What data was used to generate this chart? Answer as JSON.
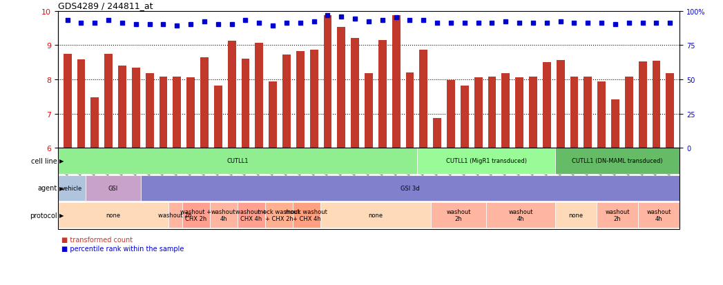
{
  "title": "GDS4289 / 244811_at",
  "samples": [
    "GSM731500",
    "GSM731501",
    "GSM731502",
    "GSM731503",
    "GSM731504",
    "GSM731505",
    "GSM731518",
    "GSM731519",
    "GSM731520",
    "GSM731506",
    "GSM731507",
    "GSM731508",
    "GSM731509",
    "GSM731510",
    "GSM731511",
    "GSM731512",
    "GSM731513",
    "GSM731514",
    "GSM731515",
    "GSM731516",
    "GSM731517",
    "GSM731521",
    "GSM731522",
    "GSM731523",
    "GSM731524",
    "GSM731525",
    "GSM731526",
    "GSM731527",
    "GSM731528",
    "GSM731529",
    "GSM731531",
    "GSM731532",
    "GSM731533",
    "GSM731534",
    "GSM731535",
    "GSM731536",
    "GSM731537",
    "GSM731538",
    "GSM731539",
    "GSM731540",
    "GSM731541",
    "GSM731542",
    "GSM731543",
    "GSM731544",
    "GSM731545"
  ],
  "bar_values": [
    8.74,
    8.58,
    7.47,
    8.75,
    8.41,
    8.34,
    8.17,
    8.07,
    8.07,
    8.05,
    8.65,
    7.82,
    9.12,
    8.6,
    9.07,
    7.93,
    8.73,
    8.83,
    8.87,
    9.87,
    9.52,
    9.2,
    8.17,
    9.15,
    9.87,
    8.19,
    8.87,
    6.88,
    7.97,
    7.82,
    8.06,
    8.08,
    8.17,
    8.06,
    8.07,
    8.5,
    8.57,
    8.07,
    8.08,
    7.93,
    7.42,
    8.08,
    8.53,
    8.54,
    8.18
  ],
  "percentile_values": [
    93,
    91,
    91,
    93,
    91,
    90,
    90,
    90,
    89,
    90,
    92,
    90,
    90,
    93,
    91,
    89,
    91,
    91,
    92,
    97,
    96,
    94,
    92,
    93,
    95,
    93,
    93,
    91,
    91,
    91,
    91,
    91,
    92,
    91,
    91,
    91,
    92,
    91,
    91,
    91,
    90,
    91,
    91,
    91,
    91
  ],
  "bar_color": "#C0392B",
  "dot_color": "#0000CC",
  "ylim": [
    6,
    10
  ],
  "y2lim": [
    0,
    100
  ],
  "yticks": [
    6,
    7,
    8,
    9,
    10
  ],
  "y2ticks": [
    0,
    25,
    50,
    75,
    100
  ],
  "dotted_lines": [
    7,
    8,
    9
  ],
  "cell_line_groups": [
    {
      "label": "CUTLL1",
      "start": 0,
      "end": 26,
      "color": "#90EE90"
    },
    {
      "label": "CUTLL1 (MigR1 transduced)",
      "start": 26,
      "end": 36,
      "color": "#98FB98"
    },
    {
      "label": "CUTLL1 (DN-MAML transduced)",
      "start": 36,
      "end": 45,
      "color": "#66BB66"
    }
  ],
  "agent_groups": [
    {
      "label": "vehicle",
      "start": 0,
      "end": 2,
      "color": "#B0C4DE"
    },
    {
      "label": "GSI",
      "start": 2,
      "end": 6,
      "color": "#C8A2C8"
    },
    {
      "label": "GSI 3d",
      "start": 6,
      "end": 45,
      "color": "#8080CC"
    }
  ],
  "protocol_groups": [
    {
      "label": "none",
      "start": 0,
      "end": 8,
      "color": "#FFDAB9"
    },
    {
      "label": "washout 2h",
      "start": 8,
      "end": 9,
      "color": "#FFB6A0"
    },
    {
      "label": "washout +\nCHX 2h",
      "start": 9,
      "end": 11,
      "color": "#FFA090"
    },
    {
      "label": "washout\n4h",
      "start": 11,
      "end": 13,
      "color": "#FFB6A0"
    },
    {
      "label": "washout +\nCHX 4h",
      "start": 13,
      "end": 15,
      "color": "#FFA090"
    },
    {
      "label": "mock washout\n+ CHX 2h",
      "start": 15,
      "end": 17,
      "color": "#FFB090"
    },
    {
      "label": "mock washout\n+ CHX 4h",
      "start": 17,
      "end": 19,
      "color": "#FFA080"
    },
    {
      "label": "none",
      "start": 19,
      "end": 27,
      "color": "#FFDAB9"
    },
    {
      "label": "washout\n2h",
      "start": 27,
      "end": 31,
      "color": "#FFB6A0"
    },
    {
      "label": "washout\n4h",
      "start": 31,
      "end": 36,
      "color": "#FFB6A0"
    },
    {
      "label": "none",
      "start": 36,
      "end": 39,
      "color": "#FFDAB9"
    },
    {
      "label": "washout\n2h",
      "start": 39,
      "end": 42,
      "color": "#FFB6A0"
    },
    {
      "label": "washout\n4h",
      "start": 42,
      "end": 45,
      "color": "#FFB6A0"
    }
  ],
  "legend_items": [
    {
      "label": "transformed count",
      "color": "#C0392B",
      "marker": "s"
    },
    {
      "label": "percentile rank within the sample",
      "color": "#0000CC",
      "marker": "s"
    }
  ]
}
